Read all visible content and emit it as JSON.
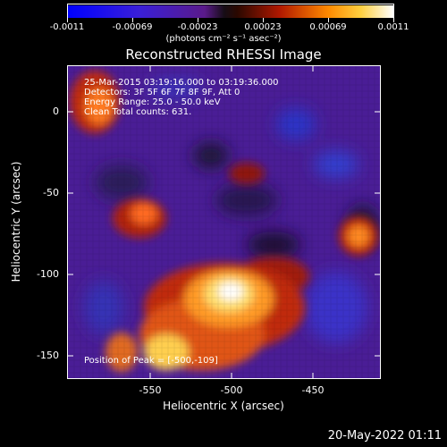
{
  "colorbar": {
    "ticks": [
      "-0.0011",
      "-0.00069",
      "-0.00023",
      "0.00023",
      "0.00069",
      "0.0011"
    ],
    "units": "(photons cm⁻² s⁻¹ asec⁻²)"
  },
  "title": "Reconstructed RHESSI Image",
  "annotations": {
    "time": "25-Mar-2015 03:19:16.000 to 03:19:36.000",
    "detectors": "Detectors: 3F 5F 6F 7F 8F 9F, Att 0",
    "energy": "Energy Range: 25.0 - 50.0 keV",
    "clean": "Clean   Total counts: 631.",
    "peak": "Position of Peak = [-500,-109]"
  },
  "axes": {
    "xlabel": "Heliocentric X (arcsec)",
    "ylabel": "Heliocentric Y (arcsec)",
    "xticks": [
      "-550",
      "-500",
      "-450"
    ],
    "yticks": [
      "0",
      "-50",
      "-100",
      "-150"
    ]
  },
  "footer": {
    "date": "20-May-2022 01:11"
  },
  "colors": {
    "background": "#000000",
    "border": "#ffffff"
  }
}
